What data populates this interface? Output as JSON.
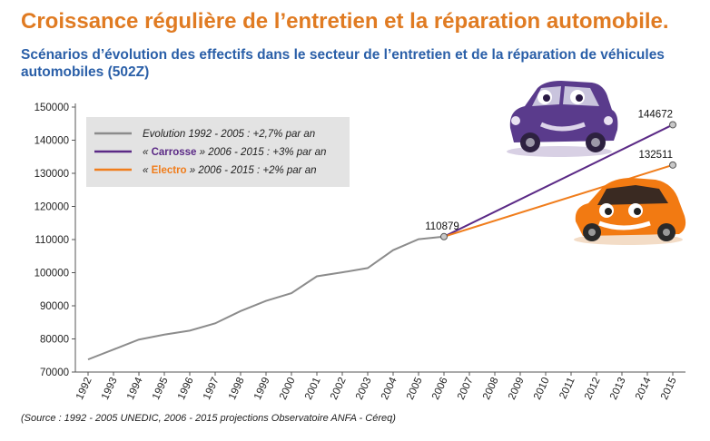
{
  "header": {
    "title": "Croissance régulière de l’entretien et la réparation automobile.",
    "subtitle": "Scénarios d’évolution des effectifs dans le secteur de l’entretien et de la réparation de véhicules automobiles (502Z)"
  },
  "legend": [
    {
      "prefix": "",
      "emph": "",
      "text": "Evolution 1992 - 2005 : +2,7% par an",
      "color": "#8c8c8c",
      "emph_color": "#8c8c8c"
    },
    {
      "prefix": "« ",
      "emph": "Carrosse",
      "text": " » 2006 - 2015 : +3% par an",
      "color": "#5b2a86",
      "emph_color": "#5b2a86"
    },
    {
      "prefix": "« ",
      "emph": "Electro",
      "text": " » 2006 - 2015 : +2% par an",
      "color": "#f07d1c",
      "emph_color": "#f07d1c"
    }
  ],
  "source": "(Source : 1992 - 2005 UNEDIC, 2006 - 2015 projections Observatoire ANFA - Céreq)",
  "colors": {
    "title": "#e07b22",
    "subtitle": "#2a5fa8",
    "legend_box": "#e3e3e3"
  },
  "illustrations": [
    "purple-cartoon-car",
    "orange-cartoon-car"
  ],
  "chart_data": {
    "type": "line",
    "title": "",
    "xlabel": "",
    "ylabel": "",
    "ylim": [
      70000,
      150000
    ],
    "yticks": [
      70000,
      80000,
      90000,
      100000,
      110000,
      120000,
      130000,
      140000,
      150000
    ],
    "ytick_labels": [
      "70000",
      "80000",
      "90000",
      "100000",
      "110000",
      "120000",
      "130000",
      "140000",
      "150000"
    ],
    "x": [
      "1992",
      "1993",
      "1994",
      "1995",
      "1996",
      "1997",
      "1998",
      "1999",
      "2000",
      "2001",
      "2002",
      "2003",
      "2004",
      "2005",
      "2006",
      "2007",
      "2008",
      "2009",
      "2010",
      "2011",
      "2012",
      "2013",
      "2014",
      "2015"
    ],
    "grid": false,
    "legend_position": "top-left",
    "series": [
      {
        "name": "Evolution 1992 - 2005 : +2,7% par an",
        "color": "#8c8c8c",
        "points": [
          [
            "1992",
            73800
          ],
          [
            "1993",
            76800
          ],
          [
            "1994",
            79800
          ],
          [
            "1995",
            81300
          ],
          [
            "1996",
            82500
          ],
          [
            "1997",
            84700
          ],
          [
            "1998",
            88400
          ],
          [
            "1999",
            91500
          ],
          [
            "2000",
            93800
          ],
          [
            "2001",
            98900
          ],
          [
            "2002",
            100100
          ],
          [
            "2003",
            101400
          ],
          [
            "2004",
            106800
          ],
          [
            "2005",
            110100
          ],
          [
            "2006",
            110879
          ]
        ]
      },
      {
        "name": "« Carrosse » 2006 - 2015 : +3% par an",
        "color": "#5b2a86",
        "points": [
          [
            "2006",
            110879
          ],
          [
            "2015",
            144672
          ]
        ]
      },
      {
        "name": "« Electro » 2006 - 2015 : +2% par an",
        "color": "#f07d1c",
        "points": [
          [
            "2006",
            110879
          ],
          [
            "2015",
            132511
          ]
        ]
      }
    ],
    "annotations": [
      {
        "x": "2006",
        "y": 110879,
        "label": "110879"
      },
      {
        "x": "2015",
        "y": 144672,
        "label": "144672"
      },
      {
        "x": "2015",
        "y": 132511,
        "label": "132511"
      }
    ]
  }
}
